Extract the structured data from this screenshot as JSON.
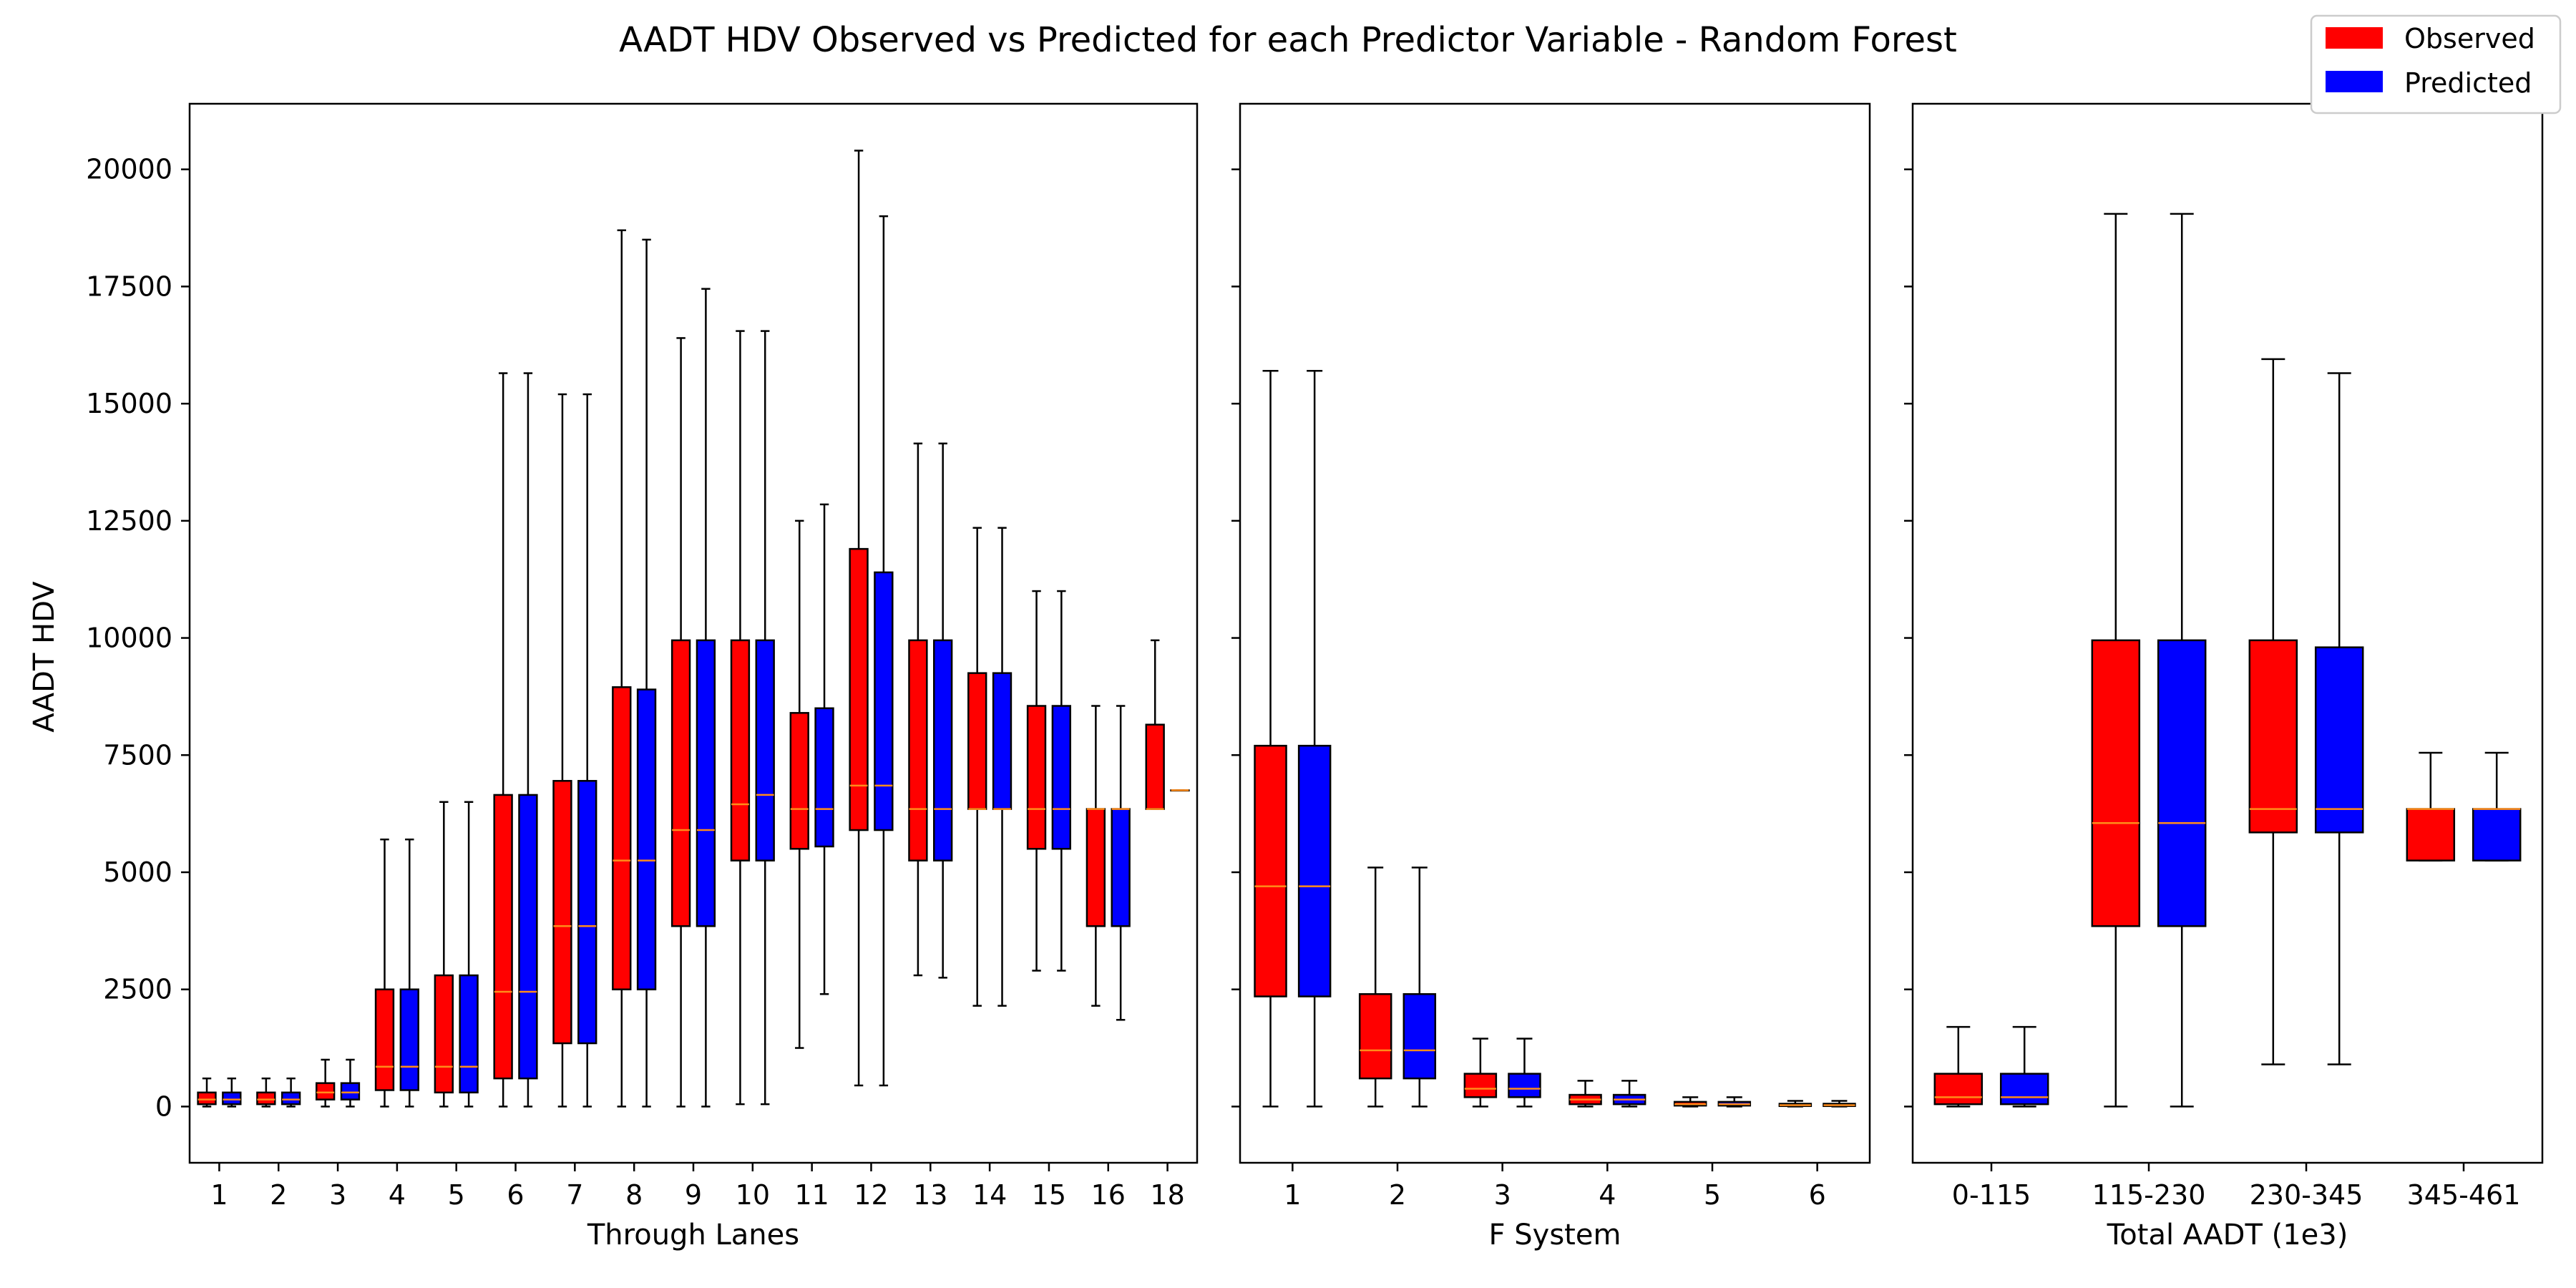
{
  "title": "AADT HDV Observed vs Predicted for each Predictor Variable - Random Forest",
  "ylabel": "AADT HDV",
  "legend": [
    {
      "label": "Observed",
      "color": "#ff0000"
    },
    {
      "label": "Predicted",
      "color": "#0000ff"
    }
  ],
  "colors": {
    "observed": "#ff0000",
    "predicted": "#0000ff",
    "median": "#ff8c1a",
    "edge": "#000000"
  },
  "chart_data": {
    "type": "box",
    "title": "AADT HDV Observed vs Predicted for each Predictor Variable - Random Forest",
    "ylabel": "AADT HDV",
    "ylim": [
      -1200,
      21400
    ],
    "yticks": [
      0,
      2500,
      5000,
      7500,
      10000,
      12500,
      15000,
      17500,
      20000
    ],
    "legend_position": "top-right",
    "panels": [
      {
        "xlabel": "Through Lanes",
        "groups": [
          {
            "label": "1",
            "observed": {
              "whislo": 0,
              "q1": 50,
              "med": 150,
              "q3": 300,
              "whishi": 600
            },
            "predicted": {
              "whislo": 0,
              "q1": 50,
              "med": 150,
              "q3": 300,
              "whishi": 600
            }
          },
          {
            "label": "2",
            "observed": {
              "whislo": 0,
              "q1": 50,
              "med": 150,
              "q3": 300,
              "whishi": 600
            },
            "predicted": {
              "whislo": 0,
              "q1": 50,
              "med": 150,
              "q3": 300,
              "whishi": 600
            }
          },
          {
            "label": "3",
            "observed": {
              "whislo": 0,
              "q1": 150,
              "med": 300,
              "q3": 500,
              "whishi": 1000
            },
            "predicted": {
              "whislo": 0,
              "q1": 150,
              "med": 300,
              "q3": 500,
              "whishi": 1000
            }
          },
          {
            "label": "4",
            "observed": {
              "whislo": 0,
              "q1": 350,
              "med": 850,
              "q3": 2500,
              "whishi": 5700
            },
            "predicted": {
              "whislo": 0,
              "q1": 350,
              "med": 850,
              "q3": 2500,
              "whishi": 5700
            }
          },
          {
            "label": "5",
            "observed": {
              "whislo": 0,
              "q1": 300,
              "med": 850,
              "q3": 2800,
              "whishi": 6500
            },
            "predicted": {
              "whislo": 0,
              "q1": 300,
              "med": 850,
              "q3": 2800,
              "whishi": 6500
            }
          },
          {
            "label": "6",
            "observed": {
              "whislo": 0,
              "q1": 600,
              "med": 2450,
              "q3": 6650,
              "whishi": 15650
            },
            "predicted": {
              "whislo": 0,
              "q1": 600,
              "med": 2450,
              "q3": 6650,
              "whishi": 15650
            }
          },
          {
            "label": "7",
            "observed": {
              "whislo": 0,
              "q1": 1350,
              "med": 3850,
              "q3": 6950,
              "whishi": 15200
            },
            "predicted": {
              "whislo": 0,
              "q1": 1350,
              "med": 3850,
              "q3": 6950,
              "whishi": 15200
            }
          },
          {
            "label": "8",
            "observed": {
              "whislo": 0,
              "q1": 2500,
              "med": 5250,
              "q3": 8950,
              "whishi": 18700
            },
            "predicted": {
              "whislo": 0,
              "q1": 2500,
              "med": 5250,
              "q3": 8900,
              "whishi": 18500
            }
          },
          {
            "label": "9",
            "observed": {
              "whislo": 0,
              "q1": 3850,
              "med": 5900,
              "q3": 9950,
              "whishi": 16400
            },
            "predicted": {
              "whislo": 0,
              "q1": 3850,
              "med": 5900,
              "q3": 9950,
              "whishi": 17450
            }
          },
          {
            "label": "10",
            "observed": {
              "whislo": 50,
              "q1": 5250,
              "med": 6450,
              "q3": 9950,
              "whishi": 16550
            },
            "predicted": {
              "whislo": 50,
              "q1": 5250,
              "med": 6650,
              "q3": 9950,
              "whishi": 16550
            }
          },
          {
            "label": "11",
            "observed": {
              "whislo": 1250,
              "q1": 5500,
              "med": 6350,
              "q3": 8400,
              "whishi": 12500
            },
            "predicted": {
              "whislo": 2400,
              "q1": 5550,
              "med": 6350,
              "q3": 8500,
              "whishi": 12850
            }
          },
          {
            "label": "12",
            "observed": {
              "whislo": 450,
              "q1": 5900,
              "med": 6850,
              "q3": 11900,
              "whishi": 20400
            },
            "predicted": {
              "whislo": 450,
              "q1": 5900,
              "med": 6850,
              "q3": 11400,
              "whishi": 19000
            }
          },
          {
            "label": "13",
            "observed": {
              "whislo": 2800,
              "q1": 5250,
              "med": 6350,
              "q3": 9950,
              "whishi": 14150
            },
            "predicted": {
              "whislo": 2750,
              "q1": 5250,
              "med": 6350,
              "q3": 9950,
              "whishi": 14150
            }
          },
          {
            "label": "14",
            "observed": {
              "whislo": 2150,
              "q1": 6350,
              "med": 6350,
              "q3": 9250,
              "whishi": 12350
            },
            "predicted": {
              "whislo": 2150,
              "q1": 6350,
              "med": 6350,
              "q3": 9250,
              "whishi": 12350
            }
          },
          {
            "label": "15",
            "observed": {
              "whislo": 2900,
              "q1": 5500,
              "med": 6350,
              "q3": 8550,
              "whishi": 11000
            },
            "predicted": {
              "whislo": 2900,
              "q1": 5500,
              "med": 6350,
              "q3": 8550,
              "whishi": 11000
            }
          },
          {
            "label": "16",
            "observed": {
              "whislo": 2150,
              "q1": 3850,
              "med": 6350,
              "q3": 6350,
              "whishi": 8550
            },
            "predicted": {
              "whislo": 1850,
              "q1": 3850,
              "med": 6350,
              "q3": 6350,
              "whishi": 8550
            }
          },
          {
            "label": "18",
            "observed": {
              "whislo": 6350,
              "q1": 6350,
              "med": 6350,
              "q3": 8150,
              "whishi": 9950
            },
            "predicted": {
              "whislo": 6750,
              "q1": 6750,
              "med": 6750,
              "q3": 6750,
              "whishi": 6750
            }
          }
        ]
      },
      {
        "xlabel": "F System",
        "groups": [
          {
            "label": "1",
            "observed": {
              "whislo": 0,
              "q1": 2350,
              "med": 4700,
              "q3": 7700,
              "whishi": 15700
            },
            "predicted": {
              "whislo": 0,
              "q1": 2350,
              "med": 4700,
              "q3": 7700,
              "whishi": 15700
            }
          },
          {
            "label": "2",
            "observed": {
              "whislo": 0,
              "q1": 600,
              "med": 1200,
              "q3": 2400,
              "whishi": 5100
            },
            "predicted": {
              "whislo": 0,
              "q1": 600,
              "med": 1200,
              "q3": 2400,
              "whishi": 5100
            }
          },
          {
            "label": "3",
            "observed": {
              "whislo": 0,
              "q1": 200,
              "med": 380,
              "q3": 700,
              "whishi": 1450
            },
            "predicted": {
              "whislo": 0,
              "q1": 200,
              "med": 380,
              "q3": 700,
              "whishi": 1450
            }
          },
          {
            "label": "4",
            "observed": {
              "whislo": 0,
              "q1": 50,
              "med": 150,
              "q3": 250,
              "whishi": 550
            },
            "predicted": {
              "whislo": 0,
              "q1": 50,
              "med": 150,
              "q3": 250,
              "whishi": 550
            }
          },
          {
            "label": "5",
            "observed": {
              "whislo": 0,
              "q1": 20,
              "med": 50,
              "q3": 100,
              "whishi": 200
            },
            "predicted": {
              "whislo": 0,
              "q1": 20,
              "med": 50,
              "q3": 100,
              "whishi": 200
            }
          },
          {
            "label": "6",
            "observed": {
              "whislo": 0,
              "q1": 10,
              "med": 30,
              "q3": 60,
              "whishi": 120
            },
            "predicted": {
              "whislo": 0,
              "q1": 10,
              "med": 30,
              "q3": 60,
              "whishi": 120
            }
          }
        ]
      },
      {
        "xlabel": "Total AADT (1e3)",
        "groups": [
          {
            "label": "0-115",
            "observed": {
              "whislo": 0,
              "q1": 50,
              "med": 200,
              "q3": 700,
              "whishi": 1700
            },
            "predicted": {
              "whislo": 0,
              "q1": 50,
              "med": 200,
              "q3": 700,
              "whishi": 1700
            }
          },
          {
            "label": "115-230",
            "observed": {
              "whislo": 0,
              "q1": 3850,
              "med": 6050,
              "q3": 9950,
              "whishi": 19050
            },
            "predicted": {
              "whislo": 0,
              "q1": 3850,
              "med": 6050,
              "q3": 9950,
              "whishi": 19050
            }
          },
          {
            "label": "230-345",
            "observed": {
              "whislo": 900,
              "q1": 5850,
              "med": 6350,
              "q3": 9950,
              "whishi": 15950
            },
            "predicted": {
              "whislo": 900,
              "q1": 5850,
              "med": 6350,
              "q3": 9800,
              "whishi": 15650
            }
          },
          {
            "label": "345-461",
            "observed": {
              "whislo": 5250,
              "q1": 5250,
              "med": 6350,
              "q3": 6350,
              "whishi": 7550
            },
            "predicted": {
              "whislo": 5250,
              "q1": 5250,
              "med": 6350,
              "q3": 6350,
              "whishi": 7550
            }
          }
        ]
      }
    ]
  }
}
